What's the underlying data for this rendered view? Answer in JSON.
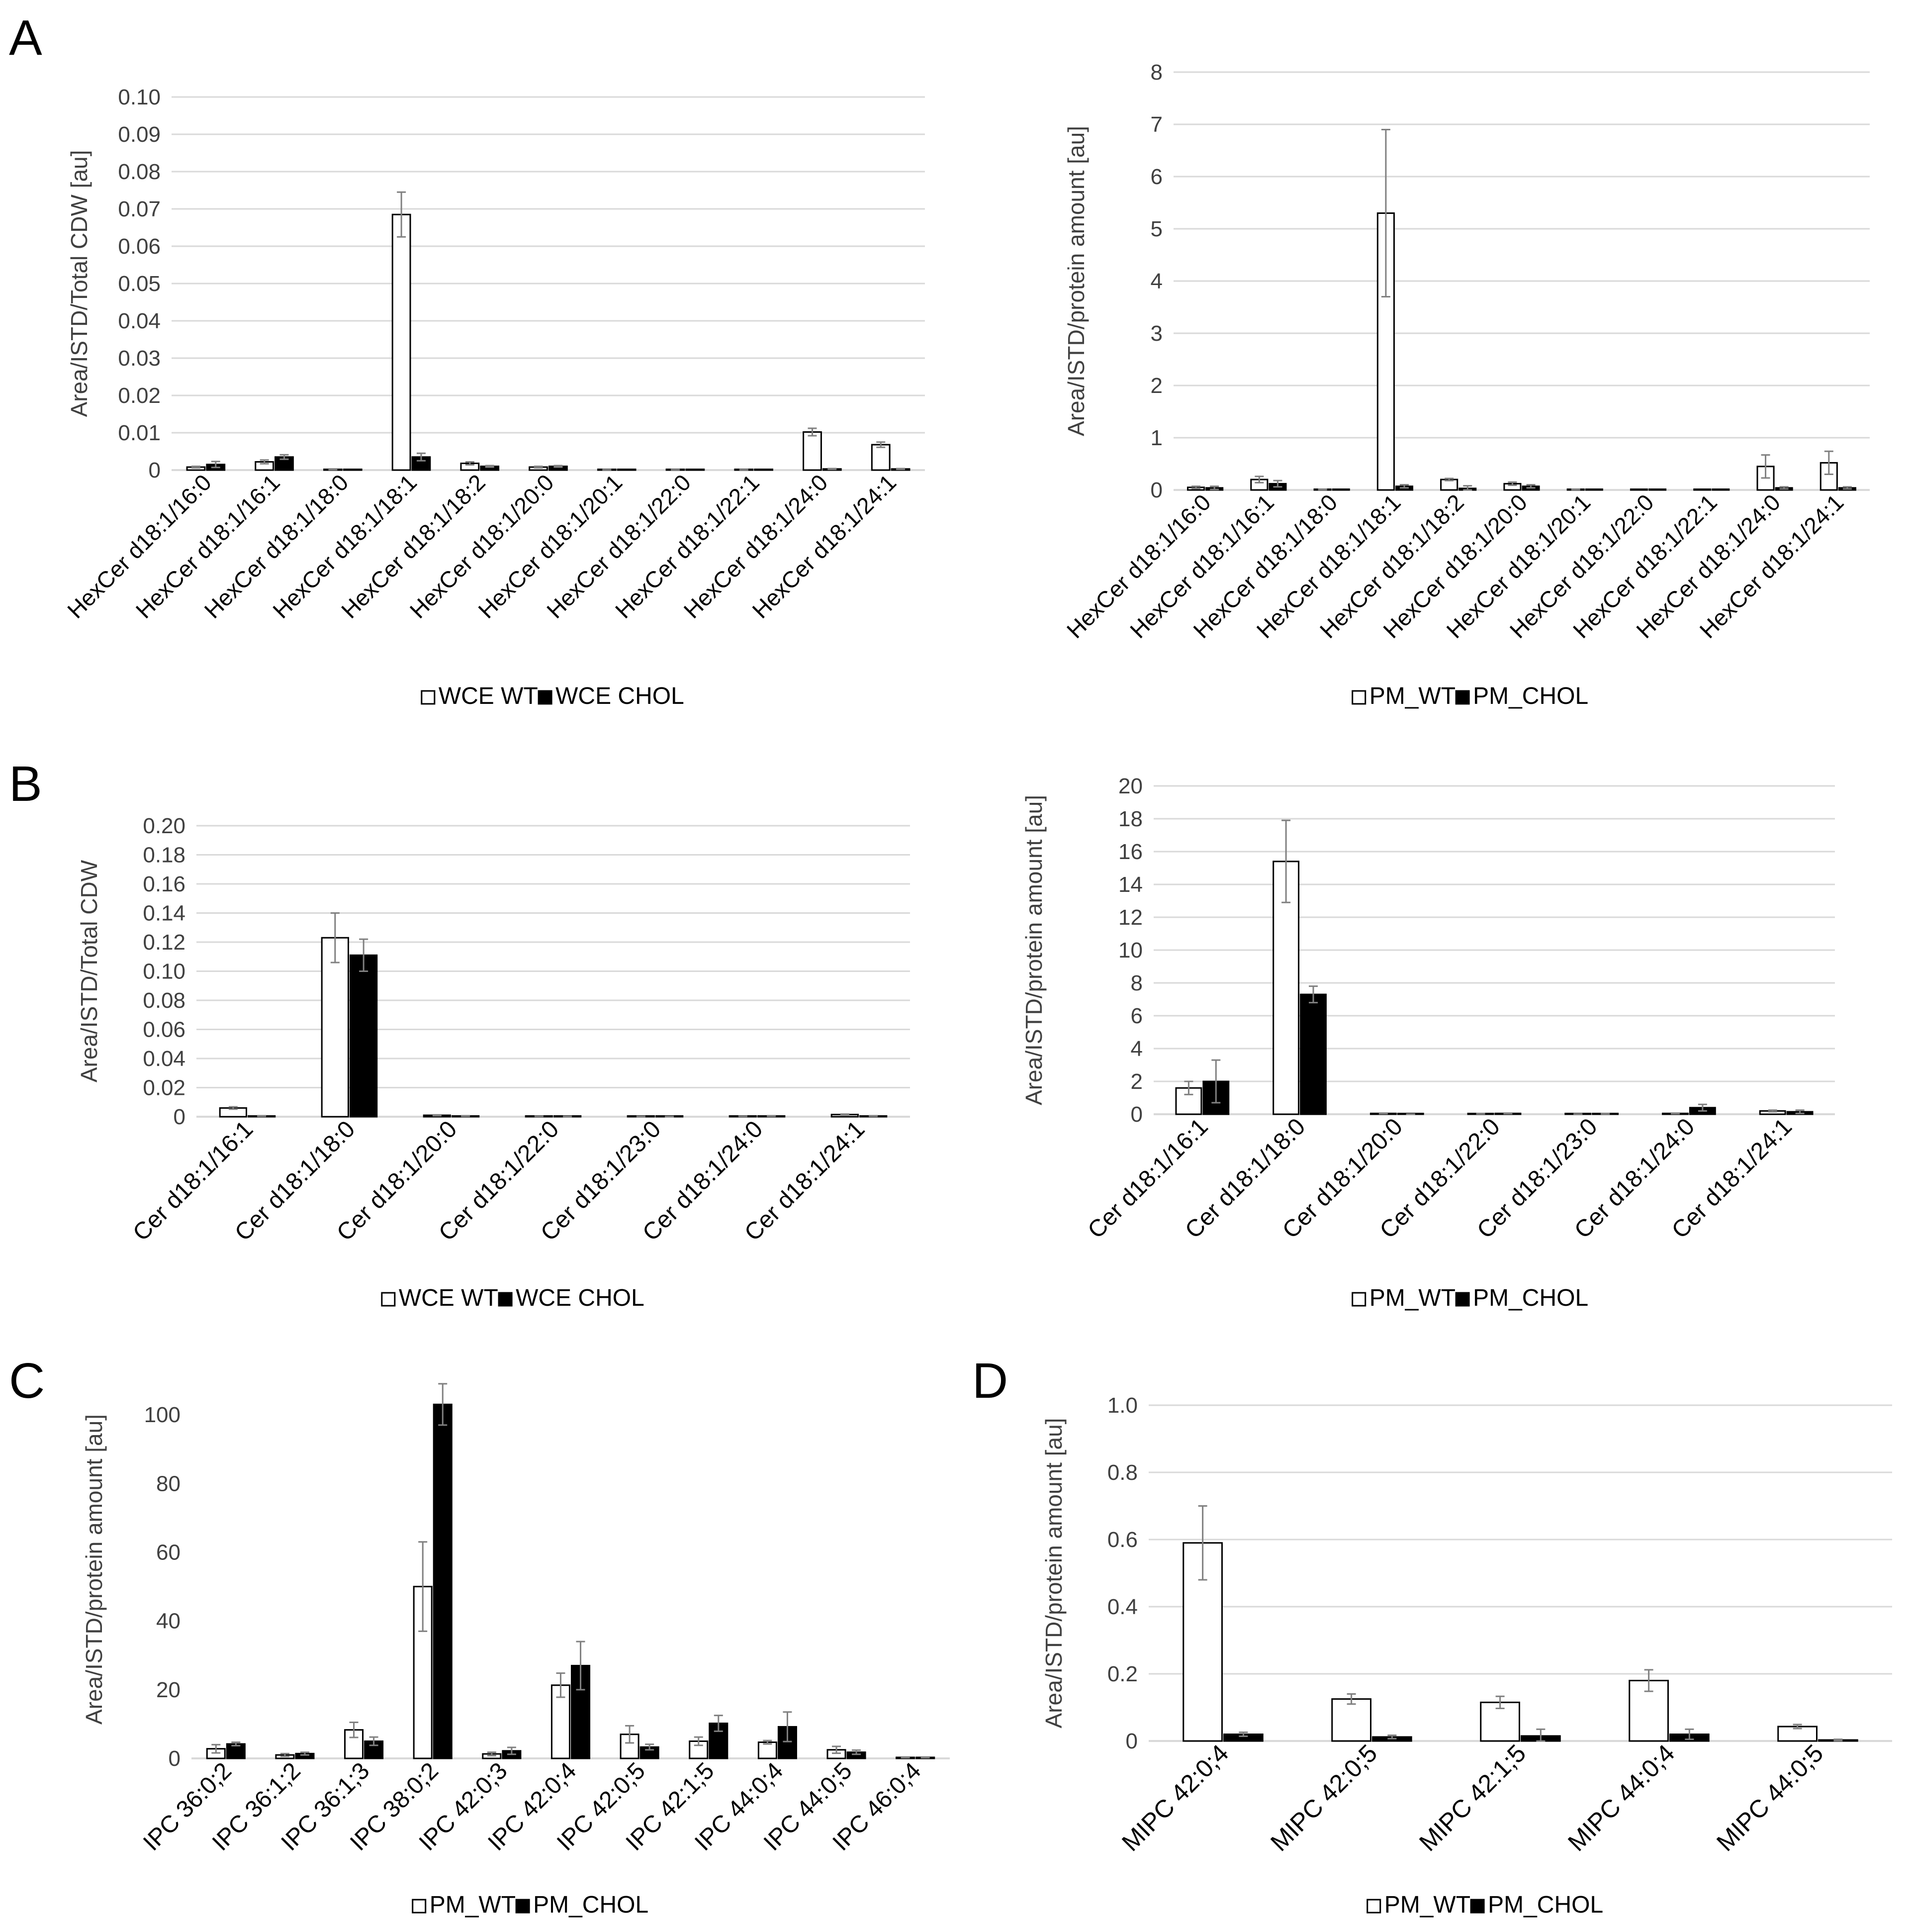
{
  "panel_labels": [
    "A",
    "B",
    "C",
    "D"
  ],
  "colors": {
    "wt_fill": "#ffffff",
    "chol_fill": "#000000",
    "bar_stroke": "#000000",
    "grid": "#d9d9d9",
    "axis_text": "#404040",
    "error_bar": "#808080"
  },
  "chart_data": [
    {
      "id": "A-left",
      "type": "bar",
      "title": "",
      "ylabel": "Area/ISTD/Total CDW [au]",
      "xlabel": "",
      "ylim": [
        0,
        0.1
      ],
      "yticks": [
        "0",
        "0.01",
        "0.02",
        "0.03",
        "0.04",
        "0.05",
        "0.06",
        "0.07",
        "0.08",
        "0.09",
        "0.10"
      ],
      "grid": true,
      "legend_position": "bottom",
      "categories": [
        "HexCer d18:1/16:0",
        "HexCer d18:1/16:1",
        "HexCer d18:1/18:0",
        "HexCer d18:1/18:1",
        "HexCer d18:1/18:2",
        "HexCer d18:1/20:0",
        "HexCer d18:1/20:1",
        "HexCer d18:1/22:0",
        "HexCer d18:1/22:1",
        "HexCer d18:1/24:0",
        "HexCer d18:1/24:1"
      ],
      "series": [
        {
          "name": "WCE WT",
          "values": [
            0.0008,
            0.0022,
            0.0002,
            0.0685,
            0.0018,
            0.0008,
            0.0001,
            0.0001,
            0.0001,
            0.0102,
            0.0068
          ],
          "errors": [
            0.0002,
            0.0005,
            0.0001,
            0.006,
            0.0004,
            0.0002,
            5e-05,
            5e-05,
            5e-05,
            0.001,
            0.0007
          ]
        },
        {
          "name": "WCE CHOL",
          "values": [
            0.0015,
            0.0035,
            0.0,
            0.0035,
            0.001,
            0.001,
            0.0,
            0.0,
            0.0,
            0.0003,
            0.0003
          ],
          "errors": [
            0.0008,
            0.0006,
            0.0,
            0.001,
            0.0002,
            0.0002,
            0.0,
            0.0,
            0.0,
            0.0001,
            0.0001
          ]
        }
      ]
    },
    {
      "id": "A-right",
      "type": "bar",
      "title": "",
      "ylabel": "Area/ISTD/protein amount [au]",
      "xlabel": "",
      "ylim": [
        0,
        8
      ],
      "yticks": [
        "0",
        "1",
        "2",
        "3",
        "4",
        "5",
        "6",
        "7",
        "8"
      ],
      "grid": true,
      "legend_position": "bottom",
      "categories": [
        "HexCer d18:1/16:0",
        "HexCer d18:1/16:1",
        "HexCer d18:1/18:0",
        "HexCer d18:1/18:1",
        "HexCer d18:1/18:2",
        "HexCer d18:1/20:0",
        "HexCer d18:1/20:1",
        "HexCer d18:1/22:0",
        "HexCer d18:1/22:1",
        "HexCer d18:1/24:0",
        "HexCer d18:1/24:1"
      ],
      "series": [
        {
          "name": "PM_WT",
          "values": [
            0.05,
            0.2,
            0.01,
            5.3,
            0.2,
            0.12,
            0.01,
            0.0,
            0.0,
            0.45,
            0.52
          ],
          "errors": [
            0.02,
            0.06,
            0.005,
            1.6,
            0.02,
            0.03,
            0.005,
            0.0,
            0.0,
            0.22,
            0.22
          ]
        },
        {
          "name": "PM_CHOL",
          "values": [
            0.04,
            0.12,
            0.0,
            0.07,
            0.03,
            0.07,
            0.0,
            0.0,
            0.0,
            0.04,
            0.04
          ],
          "errors": [
            0.03,
            0.06,
            0.0,
            0.03,
            0.05,
            0.03,
            0.0,
            0.0,
            0.0,
            0.02,
            0.02
          ]
        }
      ]
    },
    {
      "id": "B-left",
      "type": "bar",
      "title": "",
      "ylabel": "Area/ISTD/Total CDW",
      "xlabel": "",
      "ylim": [
        0,
        0.2
      ],
      "yticks": [
        "0",
        "0.02",
        "0.04",
        "0.06",
        "0.08",
        "0.10",
        "0.12",
        "0.14",
        "0.16",
        "0.18",
        "0.20"
      ],
      "grid": true,
      "legend_position": "bottom",
      "categories": [
        "Cer d18:1/16:1",
        "Cer d18:1/18:0",
        "Cer d18:1/20:0",
        "Cer d18:1/22:0",
        "Cer d18:1/23:0",
        "Cer d18:1/24:0",
        "Cer d18:1/24:1"
      ],
      "series": [
        {
          "name": "WCE WT",
          "values": [
            0.006,
            0.123,
            0.001,
            0.0003,
            0.0002,
            0.0003,
            0.0015
          ],
          "errors": [
            0.0008,
            0.017,
            0.0003,
            0.0001,
            0.0001,
            0.0001,
            0.0003
          ]
        },
        {
          "name": "WCE CHOL",
          "values": [
            0.0005,
            0.111,
            0.0005,
            0.0002,
            0.0001,
            0.0005,
            0.0005
          ],
          "errors": [
            0.0002,
            0.011,
            0.0002,
            0.0001,
            0.0001,
            0.0002,
            0.0002
          ]
        }
      ]
    },
    {
      "id": "B-right",
      "type": "bar",
      "title": "",
      "ylabel": "Area/ISTD/protein amount [au]",
      "xlabel": "",
      "ylim": [
        0,
        20
      ],
      "yticks": [
        "0",
        "2",
        "4",
        "6",
        "8",
        "10",
        "12",
        "14",
        "16",
        "18",
        "20"
      ],
      "grid": true,
      "legend_position": "bottom",
      "categories": [
        "Cer d18:1/16:1",
        "Cer d18:1/18:0",
        "Cer d18:1/20:0",
        "Cer d18:1/22:0",
        "Cer d18:1/23:0",
        "Cer d18:1/24:0",
        "Cer d18:1/24:1"
      ],
      "series": [
        {
          "name": "PM_WT",
          "values": [
            1.6,
            15.4,
            0.05,
            0.03,
            0.02,
            0.05,
            0.2
          ],
          "errors": [
            0.4,
            2.5,
            0.02,
            0.01,
            0.01,
            0.02,
            0.05
          ]
        },
        {
          "name": "PM_CHOL",
          "values": [
            2.0,
            7.3,
            0.01,
            0.05,
            0.03,
            0.4,
            0.15
          ],
          "errors": [
            1.3,
            0.5,
            0.005,
            0.02,
            0.02,
            0.2,
            0.1
          ]
        }
      ]
    },
    {
      "id": "C",
      "type": "bar",
      "title": "",
      "ylabel": "Area/ISTD/protein amount [au]",
      "xlabel": "",
      "ylim": [
        0,
        110
      ],
      "yticks": [
        "0",
        "20",
        "40",
        "60",
        "80",
        "100"
      ],
      "ytick_values": [
        0,
        20,
        40,
        60,
        80,
        100
      ],
      "grid": false,
      "legend_position": "bottom",
      "categories": [
        "IPC 36:0;2",
        "IPC 36:1;2",
        "IPC 36:1;3",
        "IPC 38:0;2",
        "IPC 42:0;3",
        "IPC 42:0;4",
        "IPC 42:0;5",
        "IPC 42:1;5",
        "IPC 44:0;4",
        "IPC 44:0;5",
        "IPC 46:0;4"
      ],
      "series": [
        {
          "name": "PM_WT",
          "values": [
            2.8,
            1.0,
            8.3,
            50,
            1.3,
            21.3,
            7.0,
            5.0,
            4.7,
            2.5,
            0.3
          ],
          "errors": [
            1.2,
            0.4,
            2.2,
            13,
            0.5,
            3.5,
            2.5,
            1.2,
            0.5,
            1.0,
            0.1
          ]
        },
        {
          "name": "PM_CHOL",
          "values": [
            4.2,
            1.4,
            5.0,
            103,
            2.2,
            27,
            3.3,
            10.2,
            9.2,
            1.8,
            0.3
          ],
          "errors": [
            0.5,
            0.4,
            1.2,
            6,
            1.0,
            7,
            0.8,
            2.3,
            4.3,
            0.6,
            0.1
          ]
        }
      ]
    },
    {
      "id": "D",
      "type": "bar",
      "title": "",
      "ylabel": "Area/ISTD/protein amount [au]",
      "xlabel": "",
      "ylim": [
        0,
        1.0
      ],
      "yticks": [
        "0",
        "0.2",
        "0.4",
        "0.6",
        "0.8",
        "1.0"
      ],
      "grid": true,
      "legend_position": "bottom",
      "categories": [
        "MIPC 42:0;4",
        "MIPC 42:0;5",
        "MIPC 42:1;5",
        "MIPC 44:0;4",
        "MIPC 44:0;5"
      ],
      "series": [
        {
          "name": "PM_WT",
          "values": [
            0.59,
            0.125,
            0.115,
            0.18,
            0.043
          ],
          "errors": [
            0.11,
            0.015,
            0.018,
            0.032,
            0.006
          ]
        },
        {
          "name": "PM_CHOL",
          "values": [
            0.02,
            0.012,
            0.015,
            0.02,
            0.003
          ],
          "errors": [
            0.006,
            0.005,
            0.02,
            0.015,
            0.002
          ]
        }
      ]
    }
  ]
}
